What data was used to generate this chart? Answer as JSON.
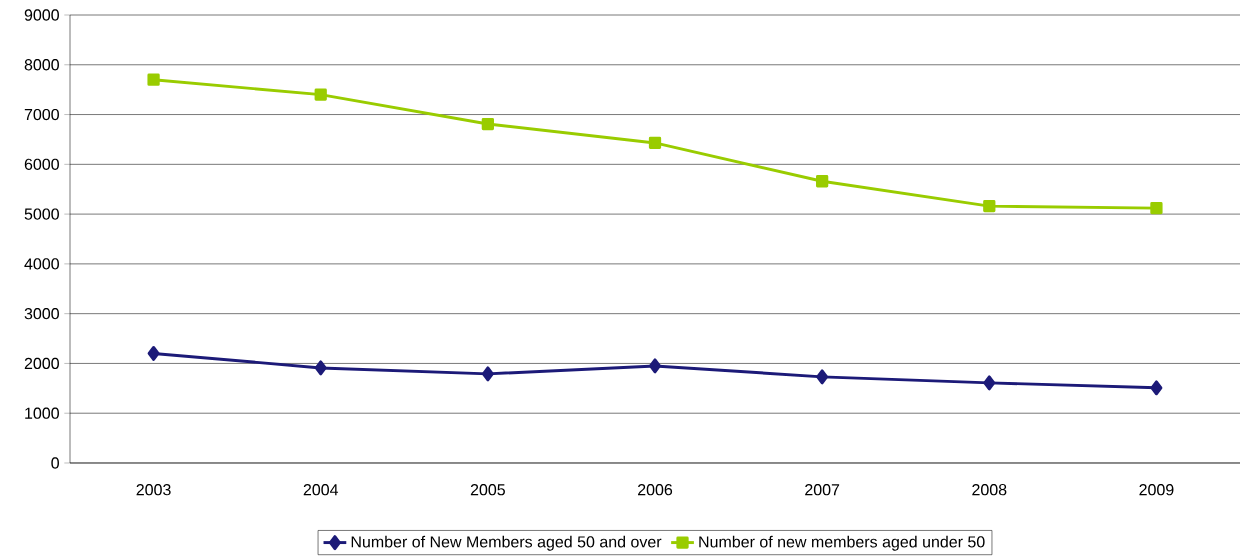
{
  "chart_data": {
    "type": "line",
    "categories": [
      "2003",
      "2004",
      "2005",
      "2006",
      "2007",
      "2008",
      "2009"
    ],
    "series": [
      {
        "name": "Number of New Members aged 50 and over",
        "color": "#1c1a78",
        "marker": "diamond",
        "values": [
          2200,
          1910,
          1790,
          1950,
          1730,
          1610,
          1510
        ]
      },
      {
        "name": "Number of new members aged under 50",
        "color": "#99cc00",
        "marker": "square",
        "values": [
          7700,
          7400,
          6810,
          6430,
          5660,
          5160,
          5120
        ]
      }
    ],
    "ylim": [
      0,
      9000
    ],
    "yticks": [
      0,
      1000,
      2000,
      3000,
      4000,
      5000,
      6000,
      7000,
      8000,
      9000
    ],
    "grid": "y",
    "legend": "bottom",
    "line_style": "solid"
  }
}
